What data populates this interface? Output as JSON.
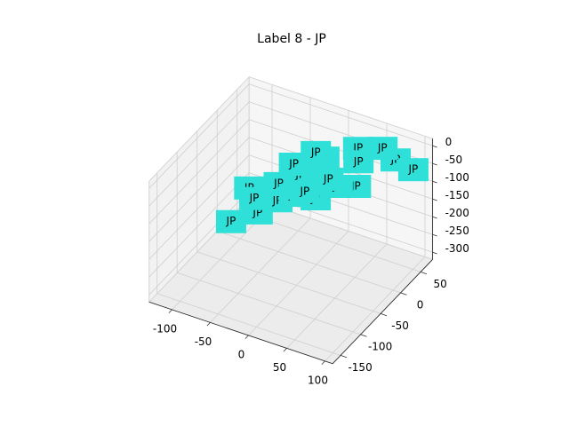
{
  "chart_data": {
    "type": "scatter3d",
    "title": "Label 8 - JP",
    "x": [
      -51,
      -33,
      -65,
      -40,
      -25,
      -14,
      11,
      -27,
      -19,
      22,
      35,
      70,
      46,
      90,
      39,
      21,
      -26,
      -40,
      -50,
      5,
      -10
    ],
    "y": [
      -116,
      -84,
      -44,
      -18,
      -50,
      -30,
      -23,
      11,
      56,
      62,
      38,
      64,
      77,
      70,
      24,
      13,
      48,
      20,
      -60,
      20,
      -10
    ],
    "z": [
      -100,
      -100,
      -100,
      -100,
      -100,
      -100,
      -100,
      -100,
      -100,
      -50,
      -50,
      -50,
      -50,
      -70,
      -100,
      -100,
      -80,
      -90,
      -100,
      -100,
      -110
    ],
    "labels": [
      "JP",
      "JP",
      "JP",
      "JP",
      "JP",
      "JP",
      "JP",
      "JP",
      "JP",
      "JP",
      "JP",
      "JP",
      "JP",
      "JP",
      "JP",
      "JP",
      "JP",
      "JP",
      "JP",
      "JP",
      "JP"
    ],
    "color": "#2ee0d8",
    "xlim": [
      -130,
      110
    ],
    "ylim": [
      -170,
      80
    ],
    "zlim": [
      -320,
      20
    ],
    "xticks": [
      -100,
      -50,
      0,
      50,
      100
    ],
    "yticks": [
      -150,
      -100,
      -50,
      0,
      50
    ],
    "zticks": [
      -300,
      -250,
      -200,
      -150,
      -100,
      -50,
      0
    ],
    "grid": true
  }
}
